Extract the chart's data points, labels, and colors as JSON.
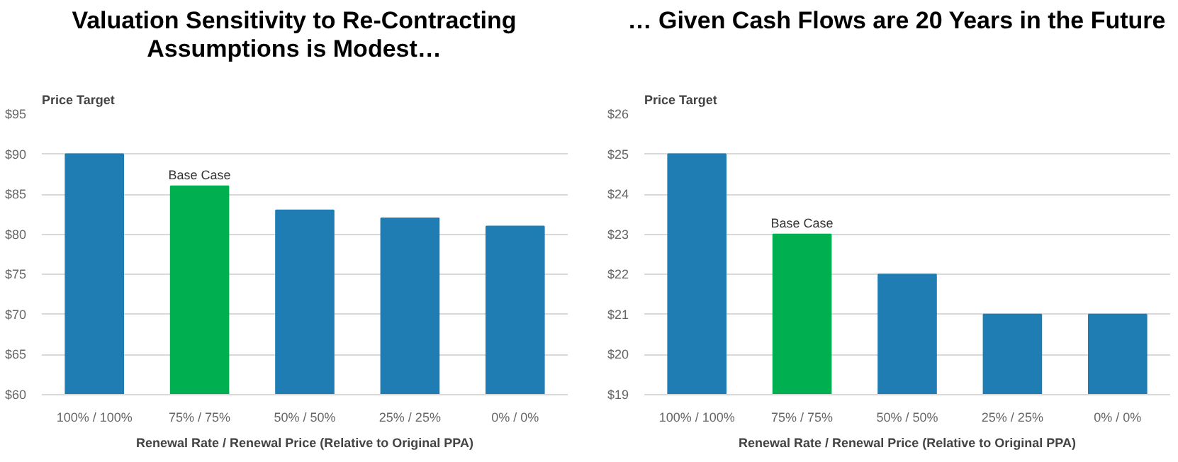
{
  "chart_data": [
    {
      "type": "bar",
      "title": "Valuation Sensitivity to Re-Contracting Assumptions is Modest…",
      "ylabel": "Price Target",
      "xlabel": "Renewal Rate / Renewal Price (Relative to Original PPA)",
      "categories": [
        "100% / 100%",
        "75% / 75%",
        "50% / 50%",
        "25% / 25%",
        "0% / 0%"
      ],
      "values": [
        90,
        86,
        83,
        82,
        81
      ],
      "colors": [
        "#1f7db4",
        "#00b050",
        "#1f7db4",
        "#1f7db4",
        "#1f7db4"
      ],
      "ylim": [
        60,
        95
      ],
      "yticks": [
        {
          "value": 60,
          "label": "$60"
        },
        {
          "value": 65,
          "label": "$65"
        },
        {
          "value": 70,
          "label": "$70"
        },
        {
          "value": 75,
          "label": "$75"
        },
        {
          "value": 80,
          "label": "$80"
        },
        {
          "value": 85,
          "label": "$85"
        },
        {
          "value": 90,
          "label": "$90"
        },
        {
          "value": 95,
          "label": "$95"
        }
      ],
      "grid": "y",
      "annotations": [
        {
          "text": "Base Case",
          "x": "75% / 75%",
          "y": 86
        }
      ]
    },
    {
      "type": "bar",
      "title": "… Given Cash Flows are 20 Years in the Future",
      "ylabel": "Price Target",
      "xlabel": "Renewal Rate / Renewal Price (Relative to Original PPA)",
      "categories": [
        "100% / 100%",
        "75% / 75%",
        "50% / 50%",
        "25% / 25%",
        "0% / 0%"
      ],
      "values": [
        25,
        23,
        22,
        21,
        21
      ],
      "colors": [
        "#1f7db4",
        "#00b050",
        "#1f7db4",
        "#1f7db4",
        "#1f7db4"
      ],
      "ylim": [
        19,
        26
      ],
      "yticks": [
        {
          "value": 19,
          "label": "$19"
        },
        {
          "value": 20,
          "label": "$20"
        },
        {
          "value": 21,
          "label": "$21"
        },
        {
          "value": 22,
          "label": "$22"
        },
        {
          "value": 23,
          "label": "$23"
        },
        {
          "value": 24,
          "label": "$24"
        },
        {
          "value": 25,
          "label": "$25"
        },
        {
          "value": 26,
          "label": "$26"
        }
      ],
      "grid": "y",
      "annotations": [
        {
          "text": "Base Case",
          "x": "75% / 75%",
          "y": 23
        }
      ]
    }
  ]
}
